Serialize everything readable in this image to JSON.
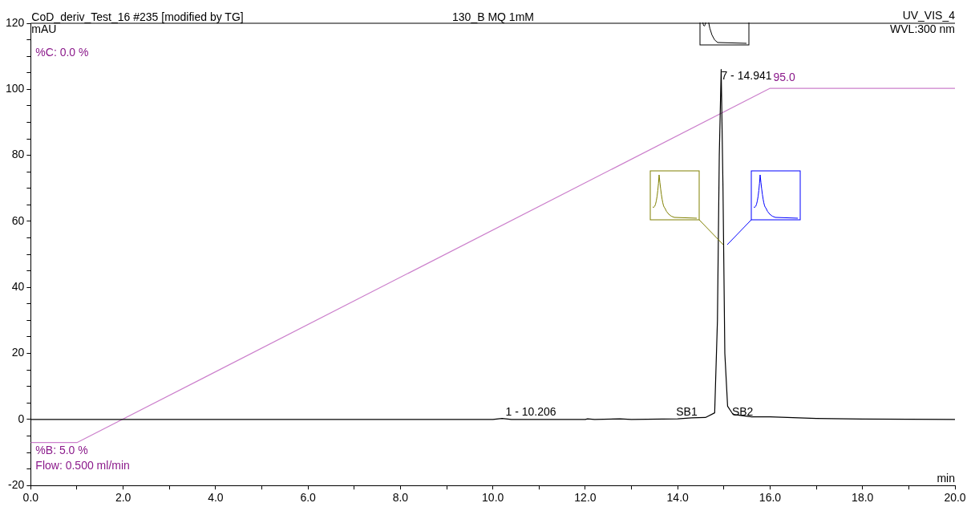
{
  "chart_data": {
    "type": "line",
    "title": "130_B MQ 1mM",
    "subtitle": "CoD_deriv_Test_16 #235 [modified by TG]",
    "xlabel": "min",
    "ylabel": "mAU",
    "xlim": [
      0,
      20
    ],
    "ylim": [
      -20,
      120
    ],
    "xticks": [
      {
        "value": 0,
        "label": "0.0"
      },
      {
        "value": 1,
        "label": null
      },
      {
        "value": 2,
        "label": "2.0"
      },
      {
        "value": 3,
        "label": null
      },
      {
        "value": 4,
        "label": "4.0"
      },
      {
        "value": 5,
        "label": null
      },
      {
        "value": 6,
        "label": "6.0"
      },
      {
        "value": 7,
        "label": null
      },
      {
        "value": 8,
        "label": "8.0"
      },
      {
        "value": 9,
        "label": null
      },
      {
        "value": 10,
        "label": "10.0"
      },
      {
        "value": 11,
        "label": null
      },
      {
        "value": 12,
        "label": "12.0"
      },
      {
        "value": 13,
        "label": null
      },
      {
        "value": 14,
        "label": "14.0"
      },
      {
        "value": 15,
        "label": null
      },
      {
        "value": 16,
        "label": "16.0"
      },
      {
        "value": 17,
        "label": null
      },
      {
        "value": 18,
        "label": "18.0"
      },
      {
        "value": 19,
        "label": null
      },
      {
        "value": 20,
        "label": "20.0"
      }
    ],
    "yticks": [
      -20,
      {
        "value": -15,
        "label": null
      },
      {
        "value": -10,
        "label": null
      },
      {
        "value": -5,
        "label": null
      },
      0,
      {
        "value": 5,
        "label": null
      },
      {
        "value": 10,
        "label": null
      },
      {
        "value": 15,
        "label": null
      },
      20,
      {
        "value": 25,
        "label": null
      },
      {
        "value": 30,
        "label": null
      },
      {
        "value": 35,
        "label": null
      },
      40,
      {
        "value": 45,
        "label": null
      },
      {
        "value": 50,
        "label": null
      },
      {
        "value": 55,
        "label": null
      },
      60,
      {
        "value": 65,
        "label": null
      },
      {
        "value": 70,
        "label": null
      },
      {
        "value": 75,
        "label": null
      },
      80,
      {
        "value": 85,
        "label": null
      },
      {
        "value": 90,
        "label": null
      },
      {
        "value": 95,
        "label": null
      },
      100,
      {
        "value": 105,
        "label": null
      },
      {
        "value": 110,
        "label": null
      },
      {
        "value": 115,
        "label": null
      },
      120
    ],
    "series": [
      {
        "color": "#000000",
        "x": [
          0,
          2,
          4,
          6,
          8,
          10,
          10.2,
          10.4,
          12,
          12.05,
          12.2,
          12.75,
          13,
          14,
          14.3,
          14.6,
          14.8,
          14.86,
          14.9,
          14.941,
          14.98,
          15.02,
          15.08,
          15.2,
          15.6,
          16,
          17,
          18,
          20
        ],
        "values": [
          0,
          0,
          0,
          0,
          0,
          0,
          0.3,
          0,
          0,
          0.2,
          0,
          0.2,
          0,
          0.2,
          0.5,
          0.6,
          2,
          30,
          80,
          106,
          70,
          20,
          4,
          1.5,
          0.8,
          0.8,
          0.3,
          0.1,
          0
        ]
      },
      {
        "color": "#cc80cc",
        "x": [
          0,
          1,
          16,
          20
        ],
        "values": [
          -7,
          -7,
          100.3,
          100.3
        ]
      }
    ],
    "annotations": [
      "UV_VIS_4",
      "WVL:300 nm",
      "%C: 0.0 %",
      "Flow: 0.500 ml/min",
      {
        "text": "%B: 5.0 %",
        "x": 0,
        "y": -7
      },
      {
        "text": "95.0",
        "x": 16,
        "y": 100.3
      },
      {
        "text": "1 - 10.206",
        "x": 10.206,
        "y": 0
      },
      {
        "text": "7 - 14.941",
        "x": 14.941,
        "y": 106
      },
      {
        "text": "SB1",
        "x": 14.3,
        "y": 0
      },
      {
        "text": "SB2",
        "x": 15.3,
        "y": 0
      }
    ],
    "legend": false,
    "marker": "none",
    "line_style": "solid",
    "grid": false
  }
}
